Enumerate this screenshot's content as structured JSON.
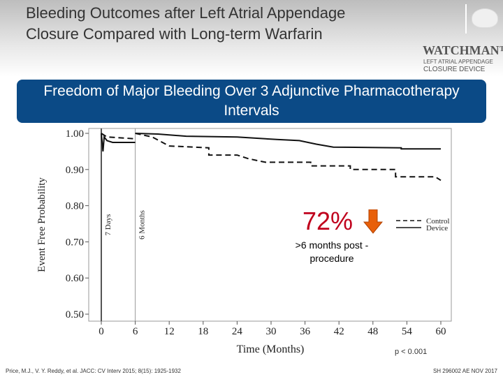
{
  "header": {
    "title": "Bleeding Outcomes after Left Atrial Appendage Closure Compared with Long-term Warfarin",
    "logo": {
      "brand": "WATCHMAN™",
      "sub1": "LEFT ATRIAL APPENDAGE",
      "sub2": "CLOSURE DEVICE"
    }
  },
  "banner": {
    "text": "Freedom of Major Bleeding Over 3 Adjunctive Pharmacotherapy Intervals"
  },
  "annotation": {
    "value": "72%",
    "icon": "down-arrow-icon",
    "note": ">6 months post -procedure",
    "color": "#e8600a"
  },
  "footer": {
    "pvalue": "p < 0.001",
    "citation": "Price, M.J., V. Y. Reddy, et al. JACC: CV Interv 2015; 8(15): 1925-1932",
    "code": "SH 296002 AE NOV 2017"
  },
  "chart_data": {
    "type": "line",
    "xlabel": "Time (Months)",
    "ylabel": "Event Free Probability",
    "xlim": [
      0,
      60
    ],
    "ylim": [
      0.5,
      1.0
    ],
    "xticks": [
      0,
      6,
      12,
      18,
      24,
      30,
      36,
      42,
      48,
      54,
      60
    ],
    "yticks": [
      "0.50",
      "0.60",
      "0.70",
      "0.80",
      "0.90",
      "1.00"
    ],
    "vlines": [
      {
        "x": 0,
        "label": "7 Days"
      },
      {
        "x": 6,
        "label": "6 Months"
      }
    ],
    "legend": {
      "position": "right",
      "entries": [
        "Control",
        "Device"
      ]
    },
    "series": [
      {
        "name": "Control",
        "style": "dashed",
        "segments": [
          [
            [
              0,
              1.0
            ],
            [
              1,
              0.99
            ],
            [
              3,
              0.988
            ],
            [
              6,
              0.985
            ]
          ],
          [
            [
              6,
              1.0
            ],
            [
              9,
              0.99
            ],
            [
              12,
              0.965
            ],
            [
              19,
              0.96
            ],
            [
              19,
              0.94
            ],
            [
              24,
              0.94
            ],
            [
              26,
              0.93
            ],
            [
              29,
              0.92
            ],
            [
              37,
              0.92
            ],
            [
              37,
              0.91
            ],
            [
              44,
              0.91
            ],
            [
              44,
              0.9
            ],
            [
              52,
              0.9
            ],
            [
              52,
              0.88
            ],
            [
              59,
              0.88
            ],
            [
              60,
              0.87
            ]
          ]
        ]
      },
      {
        "name": "Device",
        "style": "solid",
        "segments": [
          [
            [
              0,
              1.0
            ],
            [
              0.3,
              0.95
            ],
            [
              0.5,
              0.99
            ],
            [
              1,
              0.98
            ],
            [
              2,
              0.975
            ],
            [
              6,
              0.975
            ]
          ],
          [
            [
              6,
              1.0
            ],
            [
              10,
              0.998
            ],
            [
              15,
              0.992
            ],
            [
              24,
              0.99
            ],
            [
              31,
              0.983
            ],
            [
              35,
              0.98
            ],
            [
              38,
              0.97
            ],
            [
              41,
              0.962
            ],
            [
              53,
              0.96
            ],
            [
              53,
              0.957
            ],
            [
              60,
              0.957
            ]
          ]
        ]
      }
    ]
  }
}
